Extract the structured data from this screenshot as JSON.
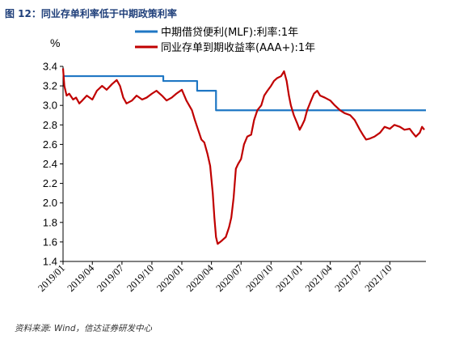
{
  "figure": {
    "title": "图 12：同业存单利率低于中期政策利率",
    "source": "资料来源: Wind，信达证券研发中心"
  },
  "chart_data": {
    "type": "line",
    "unit": "%",
    "ylim": [
      1.4,
      3.4
    ],
    "yticks": [
      1.4,
      1.6,
      1.8,
      2.0,
      2.2,
      2.4,
      2.6,
      2.8,
      3.0,
      3.2,
      3.4
    ],
    "ytick_labels": [
      "1.4",
      "1.6",
      "1.8",
      "2.0",
      "2.2",
      "2.4",
      "2.6",
      "2.8",
      "3.0",
      "3.2",
      "3.4"
    ],
    "xlim": [
      "2019-01-01",
      "2022-01-20"
    ],
    "xtick_labels": [
      "2019/01",
      "2019/04",
      "2019/07",
      "2019/10",
      "2020/01",
      "2020/04",
      "2020/07",
      "2020/10",
      "2021/01",
      "2021/04",
      "2021/07",
      "2021/10"
    ],
    "xtick_dates": [
      "2019-01-01",
      "2019-04-01",
      "2019-07-01",
      "2019-10-01",
      "2020-01-01",
      "2020-04-01",
      "2020-07-01",
      "2020-10-01",
      "2021-01-01",
      "2021-04-01",
      "2021-07-01",
      "2021-10-01"
    ],
    "grid": false,
    "legend_position": "top",
    "series": [
      {
        "name": "中期借贷便利(MLF):利率:1年",
        "color": "#1f77c4",
        "step": true,
        "points": [
          [
            "2019-01-01",
            3.3
          ],
          [
            "2019-11-05",
            3.25
          ],
          [
            "2020-02-17",
            3.15
          ],
          [
            "2020-04-15",
            2.95
          ],
          [
            "2022-01-20",
            2.95
          ]
        ]
      },
      {
        "name": "同业存单到期收益率(AAA+):1年",
        "color": "#c00000",
        "step": false,
        "points": [
          [
            "2019-01-01",
            3.38
          ],
          [
            "2019-01-05",
            3.2
          ],
          [
            "2019-01-12",
            3.1
          ],
          [
            "2019-01-20",
            3.12
          ],
          [
            "2019-02-01",
            3.06
          ],
          [
            "2019-02-10",
            3.08
          ],
          [
            "2019-02-20",
            3.02
          ],
          [
            "2019-03-01",
            3.05
          ],
          [
            "2019-03-15",
            3.1
          ],
          [
            "2019-04-01",
            3.06
          ],
          [
            "2019-04-15",
            3.15
          ],
          [
            "2019-05-01",
            3.2
          ],
          [
            "2019-05-15",
            3.16
          ],
          [
            "2019-06-01",
            3.22
          ],
          [
            "2019-06-15",
            3.26
          ],
          [
            "2019-06-25",
            3.2
          ],
          [
            "2019-07-05",
            3.08
          ],
          [
            "2019-07-15",
            3.02
          ],
          [
            "2019-08-01",
            3.05
          ],
          [
            "2019-08-15",
            3.1
          ],
          [
            "2019-09-01",
            3.06
          ],
          [
            "2019-09-15",
            3.08
          ],
          [
            "2019-10-01",
            3.12
          ],
          [
            "2019-10-15",
            3.15
          ],
          [
            "2019-11-01",
            3.1
          ],
          [
            "2019-11-15",
            3.05
          ],
          [
            "2019-12-01",
            3.08
          ],
          [
            "2019-12-15",
            3.12
          ],
          [
            "2020-01-01",
            3.16
          ],
          [
            "2020-01-15",
            3.05
          ],
          [
            "2020-02-01",
            2.95
          ],
          [
            "2020-02-10",
            2.85
          ],
          [
            "2020-02-20",
            2.75
          ],
          [
            "2020-03-01",
            2.65
          ],
          [
            "2020-03-10",
            2.62
          ],
          [
            "2020-03-20",
            2.5
          ],
          [
            "2020-03-28",
            2.38
          ],
          [
            "2020-04-05",
            2.1
          ],
          [
            "2020-04-10",
            1.85
          ],
          [
            "2020-04-15",
            1.65
          ],
          [
            "2020-04-20",
            1.58
          ],
          [
            "2020-04-28",
            1.6
          ],
          [
            "2020-05-05",
            1.62
          ],
          [
            "2020-05-15",
            1.65
          ],
          [
            "2020-05-25",
            1.75
          ],
          [
            "2020-06-01",
            1.85
          ],
          [
            "2020-06-08",
            2.05
          ],
          [
            "2020-06-15",
            2.35
          ],
          [
            "2020-06-22",
            2.4
          ],
          [
            "2020-07-01",
            2.45
          ],
          [
            "2020-07-10",
            2.6
          ],
          [
            "2020-07-20",
            2.68
          ],
          [
            "2020-08-01",
            2.7
          ],
          [
            "2020-08-10",
            2.85
          ],
          [
            "2020-08-20",
            2.95
          ],
          [
            "2020-09-01",
            3.0
          ],
          [
            "2020-09-10",
            3.1
          ],
          [
            "2020-09-20",
            3.15
          ],
          [
            "2020-10-01",
            3.2
          ],
          [
            "2020-10-10",
            3.25
          ],
          [
            "2020-10-20",
            3.28
          ],
          [
            "2020-11-01",
            3.3
          ],
          [
            "2020-11-10",
            3.35
          ],
          [
            "2020-11-18",
            3.25
          ],
          [
            "2020-11-25",
            3.1
          ],
          [
            "2020-12-01",
            3.0
          ],
          [
            "2020-12-10",
            2.9
          ],
          [
            "2020-12-20",
            2.82
          ],
          [
            "2020-12-28",
            2.75
          ],
          [
            "2021-01-05",
            2.8
          ],
          [
            "2021-01-12",
            2.85
          ],
          [
            "2021-01-20",
            2.95
          ],
          [
            "2021-02-01",
            3.05
          ],
          [
            "2021-02-10",
            3.12
          ],
          [
            "2021-02-20",
            3.15
          ],
          [
            "2021-03-01",
            3.1
          ],
          [
            "2021-03-15",
            3.08
          ],
          [
            "2021-04-01",
            3.05
          ],
          [
            "2021-04-15",
            3.0
          ],
          [
            "2021-05-01",
            2.95
          ],
          [
            "2021-05-15",
            2.92
          ],
          [
            "2021-06-01",
            2.9
          ],
          [
            "2021-06-15",
            2.85
          ],
          [
            "2021-07-01",
            2.75
          ],
          [
            "2021-07-10",
            2.7
          ],
          [
            "2021-07-20",
            2.65
          ],
          [
            "2021-08-01",
            2.66
          ],
          [
            "2021-08-15",
            2.68
          ],
          [
            "2021-09-01",
            2.72
          ],
          [
            "2021-09-15",
            2.78
          ],
          [
            "2021-10-01",
            2.76
          ],
          [
            "2021-10-15",
            2.8
          ],
          [
            "2021-11-01",
            2.78
          ],
          [
            "2021-11-15",
            2.75
          ],
          [
            "2021-12-01",
            2.76
          ],
          [
            "2021-12-10",
            2.72
          ],
          [
            "2021-12-20",
            2.68
          ],
          [
            "2022-01-01",
            2.72
          ],
          [
            "2022-01-08",
            2.78
          ],
          [
            "2022-01-15",
            2.75
          ]
        ]
      }
    ]
  }
}
